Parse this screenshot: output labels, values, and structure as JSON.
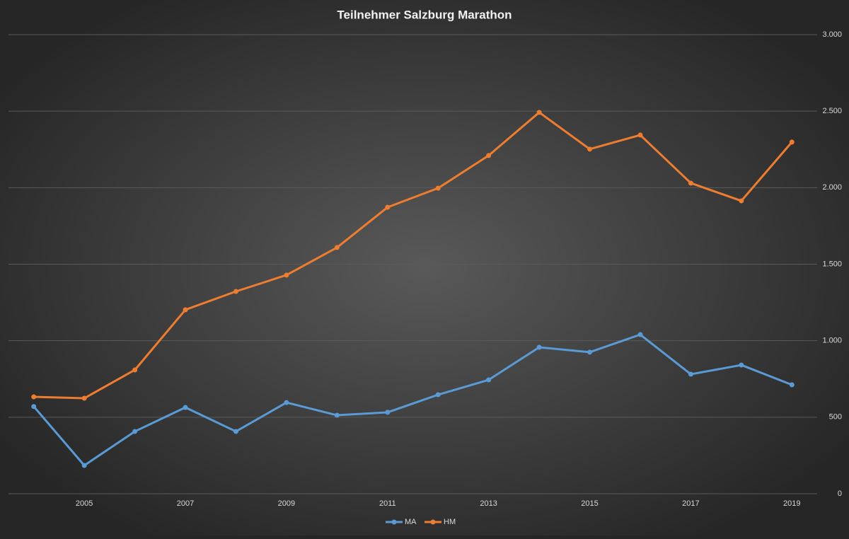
{
  "chart_data": {
    "type": "line",
    "title": "Teilnehmer  Salzburg  Marathon",
    "x": [
      2004,
      2005,
      2006,
      2007,
      2008,
      2009,
      2010,
      2011,
      2012,
      2013,
      2014,
      2015,
      2016,
      2017,
      2018,
      2019
    ],
    "series": [
      {
        "name": "MA",
        "color": "#5b9bd5",
        "values": [
          570,
          185,
          407,
          564,
          407,
          596,
          513,
          532,
          647,
          744,
          957,
          925,
          1040,
          781,
          841,
          712
        ]
      },
      {
        "name": "HM",
        "color": "#ed7d31",
        "values": [
          633,
          624,
          809,
          1202,
          1322,
          1429,
          1609,
          1872,
          1997,
          2210,
          2492,
          2252,
          2344,
          2030,
          1914,
          2298
        ]
      }
    ],
    "xlim": [
      2003.5,
      2019.5
    ],
    "xticks": [
      2005,
      2007,
      2009,
      2011,
      2013,
      2015,
      2017,
      2019
    ],
    "ylim": [
      0,
      3000
    ],
    "yticks": [
      0,
      500,
      {
        "value": 1000,
        "label": "1.000"
      },
      {
        "value": 1500,
        "label": "1.500"
      },
      {
        "value": 2000,
        "label": "2.000"
      },
      {
        "value": 2500,
        "label": "2.500"
      },
      {
        "value": 3000,
        "label": "3.000"
      }
    ],
    "grid": true,
    "legend": "bottom"
  }
}
